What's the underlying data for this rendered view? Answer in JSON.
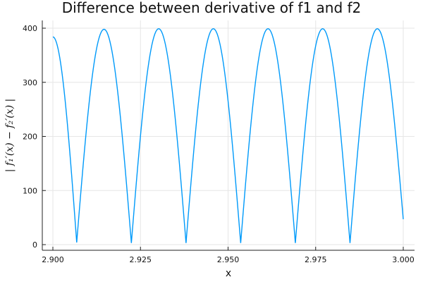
{
  "chart_data": {
    "type": "line",
    "title": "Difference between derivative of f1 and f2",
    "xlabel": "x",
    "ylabel": "| f₁′(x) − f₂′(x) |",
    "xlim": [
      2.9,
      3.0
    ],
    "ylim": [
      0,
      400
    ],
    "x_ticks": [
      2.9,
      2.925,
      2.95,
      2.975,
      3.0
    ],
    "x_tick_labels": [
      "2.900",
      "2.925",
      "2.950",
      "2.975",
      "3.000"
    ],
    "y_ticks": [
      0,
      100,
      200,
      300,
      400
    ],
    "y_tick_labels": [
      "0",
      "100",
      "200",
      "300",
      "400"
    ],
    "grid": true,
    "legend": "none",
    "colors": {
      "series": "#009AFA",
      "axis": "#222222",
      "grid": "#E6E6E6",
      "text": "#111111"
    },
    "series": [
      {
        "x": [
          2.9,
          2.9068,
          2.9146,
          2.9224,
          2.9302,
          2.938,
          2.9458,
          2.9536,
          2.9614,
          2.9692,
          2.977,
          2.9848,
          2.9926,
          3.0
        ],
        "y": [
          384,
          4,
          398,
          3,
          399,
          3,
          399,
          3,
          399,
          3,
          399,
          3,
          399,
          47
        ]
      }
    ]
  }
}
